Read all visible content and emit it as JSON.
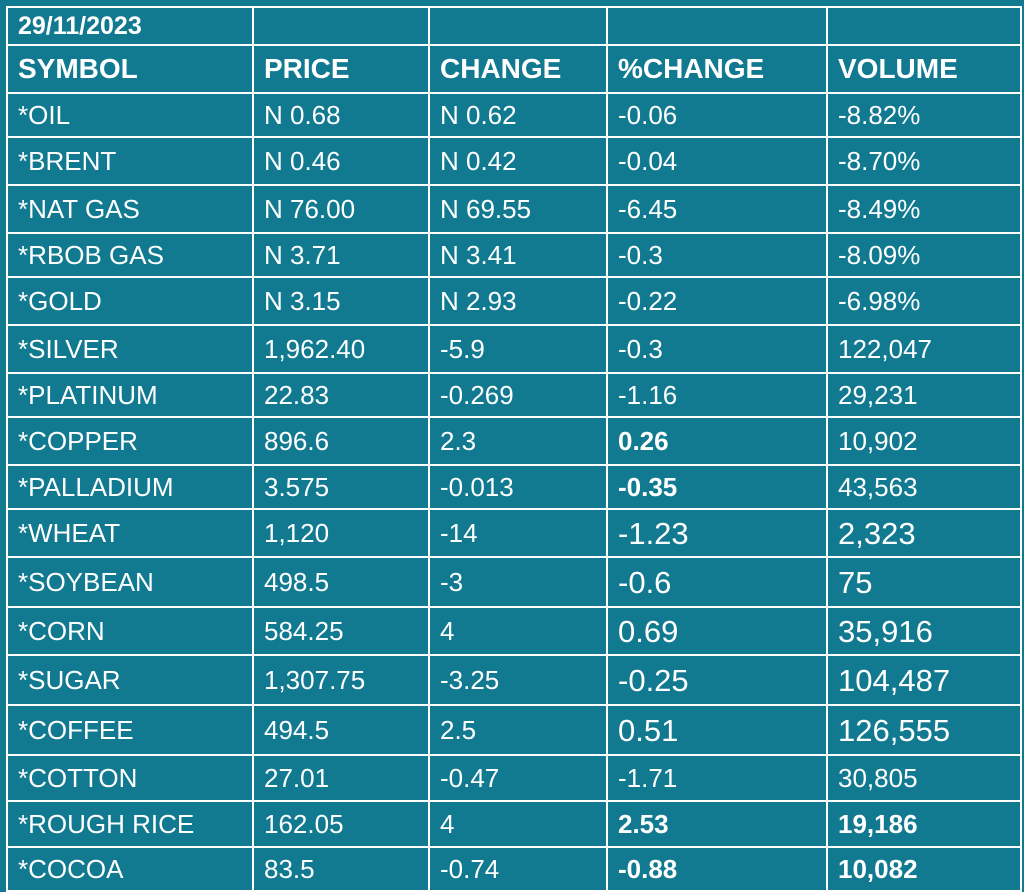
{
  "date": "29/11/2023",
  "headers": [
    "SYMBOL",
    "PRICE",
    "CHANGE",
    "%CHANGE",
    "VOLUME"
  ],
  "rows": [
    {
      "symbol": "*OIL",
      "price": "N 0.68",
      "change": "N 0.62",
      "pct_change": "-0.06",
      "volume": "-8.82%"
    },
    {
      "symbol": "*BRENT",
      "price": "N 0.46",
      "change": "N 0.42",
      "pct_change": "-0.04",
      "volume": "-8.70%"
    },
    {
      "symbol": "*NAT GAS",
      "price": "N 76.00",
      "change": "N 69.55",
      "pct_change": "-6.45",
      "volume": "-8.49%"
    },
    {
      "symbol": "*RBOB GAS",
      "price": "N 3.71",
      "change": "N 3.41",
      "pct_change": "-0.3",
      "volume": "-8.09%"
    },
    {
      "symbol": "*GOLD",
      "price": "N 3.15",
      "change": "N 2.93",
      "pct_change": "-0.22",
      "volume": "-6.98%"
    },
    {
      "symbol": "*SILVER",
      "price": "1,962.40",
      "change": "-5.9",
      "pct_change": "-0.3",
      "volume": "122,047"
    },
    {
      "symbol": "*PLATINUM",
      "price": "22.83",
      "change": "-0.269",
      "pct_change": "-1.16",
      "volume": "29,231"
    },
    {
      "symbol": "*COPPER",
      "price": "896.6",
      "change": "2.3",
      "pct_change": "0.26",
      "volume": "10,902"
    },
    {
      "symbol": "*PALLADIUM",
      "price": "3.575",
      "change": "-0.013",
      "pct_change": "-0.35",
      "volume": "43,563"
    },
    {
      "symbol": "*WHEAT",
      "price": "1,120",
      "change": "-14",
      "pct_change": "-1.23",
      "volume": "2,323"
    },
    {
      "symbol": "*SOYBEAN",
      "price": "498.5",
      "change": "-3",
      "pct_change": "-0.6",
      "volume": "75"
    },
    {
      "symbol": "*CORN",
      "price": "584.25",
      "change": "4",
      "pct_change": "0.69",
      "volume": "35,916"
    },
    {
      "symbol": "*SUGAR",
      "price": "1,307.75",
      "change": "-3.25",
      "pct_change": "-0.25",
      "volume": "104,487"
    },
    {
      "symbol": "*COFFEE",
      "price": "494.5",
      "change": "2.5",
      "pct_change": "0.51",
      "volume": "126,555"
    },
    {
      "symbol": "*COTTON",
      "price": "27.01",
      "change": "-0.47",
      "pct_change": "-1.71",
      "volume": "30,805"
    },
    {
      "symbol": "*ROUGH RICE",
      "price": "162.05",
      "change": "4",
      "pct_change": "2.53",
      "volume": "19,186"
    },
    {
      "symbol": "*COCOA",
      "price": "83.5",
      "change": "-0.74",
      "pct_change": "-0.88",
      "volume": "10,082"
    }
  ]
}
